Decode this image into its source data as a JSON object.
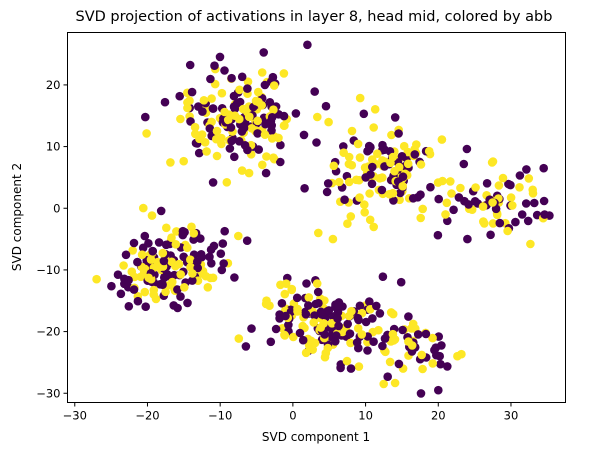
{
  "chart_data": {
    "type": "scatter",
    "title": "SVD projection of activations in layer 8, head mid, colored by abb",
    "xlabel": "SVD component 1",
    "ylabel": "SVD component 2",
    "xlim": [
      -31,
      37.5
    ],
    "ylim": [
      -31.5,
      28.5
    ],
    "xticks": [
      -30,
      -20,
      -10,
      0,
      10,
      20,
      30
    ],
    "yticks": [
      -30,
      -20,
      -10,
      0,
      10,
      20
    ],
    "xtick_labels": [
      "−30",
      "−20",
      "−10",
      "0",
      "10",
      "20",
      "30"
    ],
    "ytick_labels": [
      "−30",
      "−20",
      "−10",
      "0",
      "10",
      "20"
    ],
    "grid": false,
    "legend": "none",
    "colors": {
      "class_0": "#440154",
      "class_1": "#fde725"
    },
    "clusters": [
      {
        "center": [
          -17,
          -9
        ],
        "spread": [
          4.0,
          3.3
        ],
        "n": 150,
        "yellow_frac": 0.5,
        "rot": 0.55
      },
      {
        "center": [
          -7,
          15
        ],
        "spread": [
          4.2,
          3.8
        ],
        "n": 180,
        "yellow_frac": 0.5,
        "rot": 0.45
      },
      {
        "center": [
          12,
          6
        ],
        "spread": [
          4.0,
          3.3
        ],
        "n": 130,
        "yellow_frac": 0.6,
        "rot": -0.1
      },
      {
        "center": [
          28,
          1
        ],
        "spread": [
          3.5,
          3.2
        ],
        "n": 70,
        "yellow_frac": 0.5,
        "rot": 0.2
      },
      {
        "center": [
          3,
          -18
        ],
        "spread": [
          4.0,
          3.0
        ],
        "n": 140,
        "yellow_frac": 0.5,
        "rot": 0.1
      },
      {
        "center": [
          15,
          -22
        ],
        "spread": [
          4.5,
          2.8
        ],
        "n": 70,
        "yellow_frac": 0.5,
        "rot": -0.2
      }
    ],
    "outliers": [
      {
        "x": -27,
        "y": -11.5,
        "c": 1
      },
      {
        "x": -7.5,
        "y": -4.5,
        "c": 1
      },
      {
        "x": 3.5,
        "y": -4,
        "c": 1
      },
      {
        "x": 7.5,
        "y": -2.5,
        "c": 1
      },
      {
        "x": 5.5,
        "y": -5,
        "c": 1
      },
      {
        "x": 2,
        "y": 26.5,
        "c": 0
      },
      {
        "x": 8,
        "y": -26,
        "c": 0
      },
      {
        "x": 12.5,
        "y": -28.5,
        "c": 1
      },
      {
        "x": 20,
        "y": -29.5,
        "c": 0
      },
      {
        "x": 21,
        "y": -1,
        "c": 1
      },
      {
        "x": 34.5,
        "y": 6.5,
        "c": 0
      },
      {
        "x": 24,
        "y": -5,
        "c": 0
      }
    ]
  }
}
